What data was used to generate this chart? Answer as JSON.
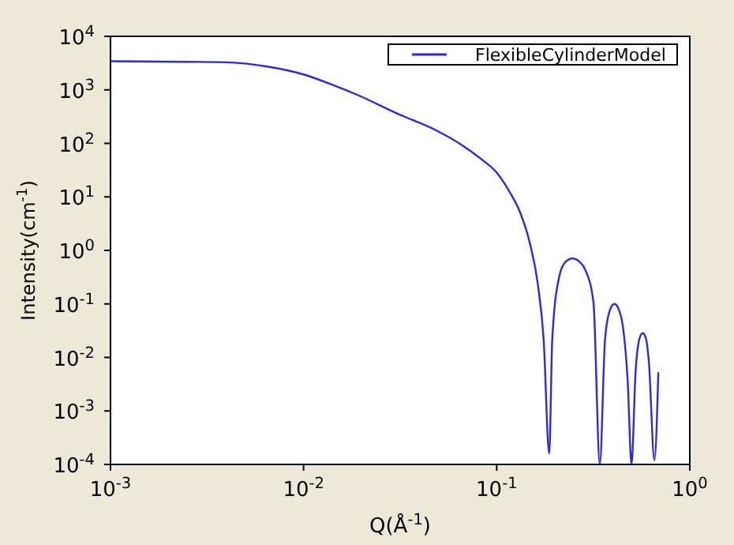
{
  "chart_data": {
    "type": "line",
    "xlabel": "Q(Å$^{-1}$)",
    "ylabel": "Intensity(cm$^{-1}$)",
    "log": "xy",
    "legend": "top right",
    "marker": "none",
    "line_style": "solid",
    "xlim": [
      0.001,
      1
    ],
    "ylim": [
      0.0001,
      10000
    ],
    "xticks": [
      {
        "value": 0.001,
        "label": "10$^{-3}$"
      },
      {
        "value": 0.01,
        "label": "10$^{-2}$"
      },
      {
        "value": 0.1,
        "label": "10$^{-1}$"
      },
      {
        "value": 1,
        "label": "10$^{0}$"
      }
    ],
    "yticks": [
      {
        "value": 0.0001,
        "label": "10$^{-4}$"
      },
      {
        "value": 0.001,
        "label": "10$^{-3}$"
      },
      {
        "value": 0.01,
        "label": "10$^{-2}$"
      },
      {
        "value": 0.1,
        "label": "10$^{-1}$"
      },
      {
        "value": 1,
        "label": "10$^{0}$"
      },
      {
        "value": 10,
        "label": "10$^{1}$"
      },
      {
        "value": 100,
        "label": "10$^{2}$"
      },
      {
        "value": 1000,
        "label": "10$^{3}$"
      },
      {
        "value": 10000,
        "label": "10$^{4}$"
      }
    ],
    "series": [
      {
        "name": "FlexibleCylinderModel",
        "color": "#2a2ae0",
        "x": [
          0.001,
          0.00393,
          0.00649,
          0.01,
          0.01377,
          0.01884,
          0.0311,
          0.0483,
          0.0661,
          0.0849,
          0.1,
          0.116,
          0.132,
          0.149,
          0.164,
          0.175,
          0.187,
          0.194,
          0.211,
          0.228,
          0.247,
          0.268,
          0.288,
          0.317,
          0.342,
          0.364,
          0.385,
          0.407,
          0.428,
          0.448,
          0.477,
          0.499,
          0.524,
          0.548,
          0.569,
          0.59,
          0.613,
          0.656,
          0.687
        ],
        "values": [
          3430,
          3270,
          2730,
          1940,
          1285,
          815,
          351,
          177,
          93,
          48,
          28.5,
          12.8,
          5.2,
          1.3,
          0.21,
          0.022,
          0.00016,
          0.022,
          0.33,
          0.62,
          0.71,
          0.62,
          0.43,
          0.107,
          0.0001,
          0.022,
          0.075,
          0.1,
          0.08,
          0.043,
          0.0035,
          0.0001,
          0.0055,
          0.022,
          0.0285,
          0.024,
          0.0088,
          0.00012,
          0.0053
        ]
      }
    ]
  }
}
